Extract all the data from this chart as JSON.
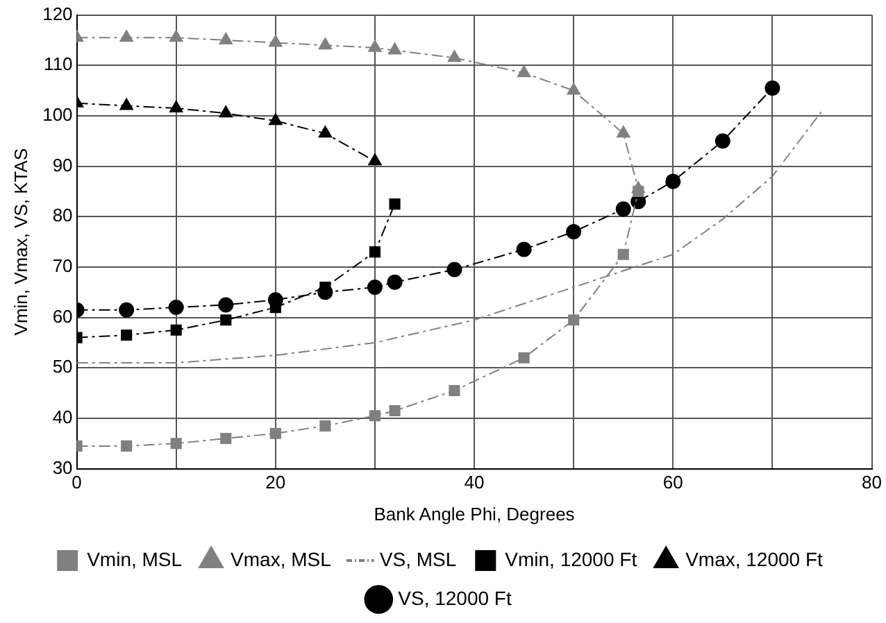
{
  "chart_data": {
    "type": "line",
    "xlabel": "Bank Angle Phi, Degrees",
    "ylabel": "Vmin, Vmax, VS, KTAS",
    "xlim": [
      0,
      80
    ],
    "xticks": [
      0,
      {
        "value": 10,
        "label": null
      },
      20,
      {
        "value": 30,
        "label": null
      },
      40,
      {
        "value": 50,
        "label": null
      },
      60,
      {
        "value": 70,
        "label": null
      },
      80
    ],
    "ylim": [
      30,
      120
    ],
    "yticks": [
      30,
      40,
      50,
      60,
      70,
      80,
      90,
      100,
      110,
      120
    ],
    "grid": true,
    "legend": "bottom",
    "line_style": "dashed",
    "series": [
      {
        "name": "Vmin, MSL",
        "color": "#808080",
        "marker": "square",
        "x": [
          0,
          5,
          10,
          15,
          20,
          25,
          30,
          32,
          38,
          45,
          50,
          55,
          56.5
        ],
        "values": [
          34.5,
          34.5,
          35,
          36,
          37,
          38.5,
          40.5,
          41.5,
          45.5,
          52,
          59.5,
          72.5,
          85
        ]
      },
      {
        "name": "Vmax, MSL",
        "color": "#808080",
        "marker": "triangle",
        "x": [
          0,
          5,
          10,
          15,
          20,
          25,
          30,
          32,
          38,
          45,
          50,
          55,
          56.5
        ],
        "values": [
          115.5,
          115.5,
          115.5,
          115,
          114.5,
          114,
          113.5,
          113,
          111.5,
          108.5,
          105,
          96.5,
          85.5
        ]
      },
      {
        "name": "VS, MSL",
        "color": "#808080",
        "marker": "none",
        "x": [
          0,
          10,
          20,
          30,
          40,
          50,
          60,
          65,
          70,
          75
        ],
        "values": [
          51,
          51,
          52.5,
          55,
          59.5,
          66,
          72.5,
          79.5,
          88,
          101
        ]
      },
      {
        "name": "Vmin, 12000 Ft",
        "color": "#000000",
        "marker": "square",
        "x": [
          0,
          5,
          10,
          15,
          20,
          25,
          30,
          32
        ],
        "values": [
          56,
          56.5,
          57.5,
          59.5,
          62,
          66,
          73,
          82.5
        ]
      },
      {
        "name": "Vmax, 12000 Ft",
        "color": "#000000",
        "marker": "triangle",
        "x": [
          0,
          5,
          10,
          15,
          20,
          25,
          30
        ],
        "values": [
          102.5,
          102,
          101.5,
          100.5,
          99,
          96.5,
          91
        ]
      },
      {
        "name": "VS, 12000 Ft",
        "color": "#000000",
        "marker": "circle",
        "x": [
          0,
          5,
          10,
          15,
          20,
          25,
          30,
          32,
          38,
          45,
          50,
          55,
          56.5,
          60,
          65,
          70
        ],
        "values": [
          61.5,
          61.5,
          62,
          62.5,
          63.5,
          65,
          66,
          67,
          69.5,
          73.5,
          77,
          81.5,
          83,
          87,
          95,
          105.5
        ]
      }
    ]
  }
}
